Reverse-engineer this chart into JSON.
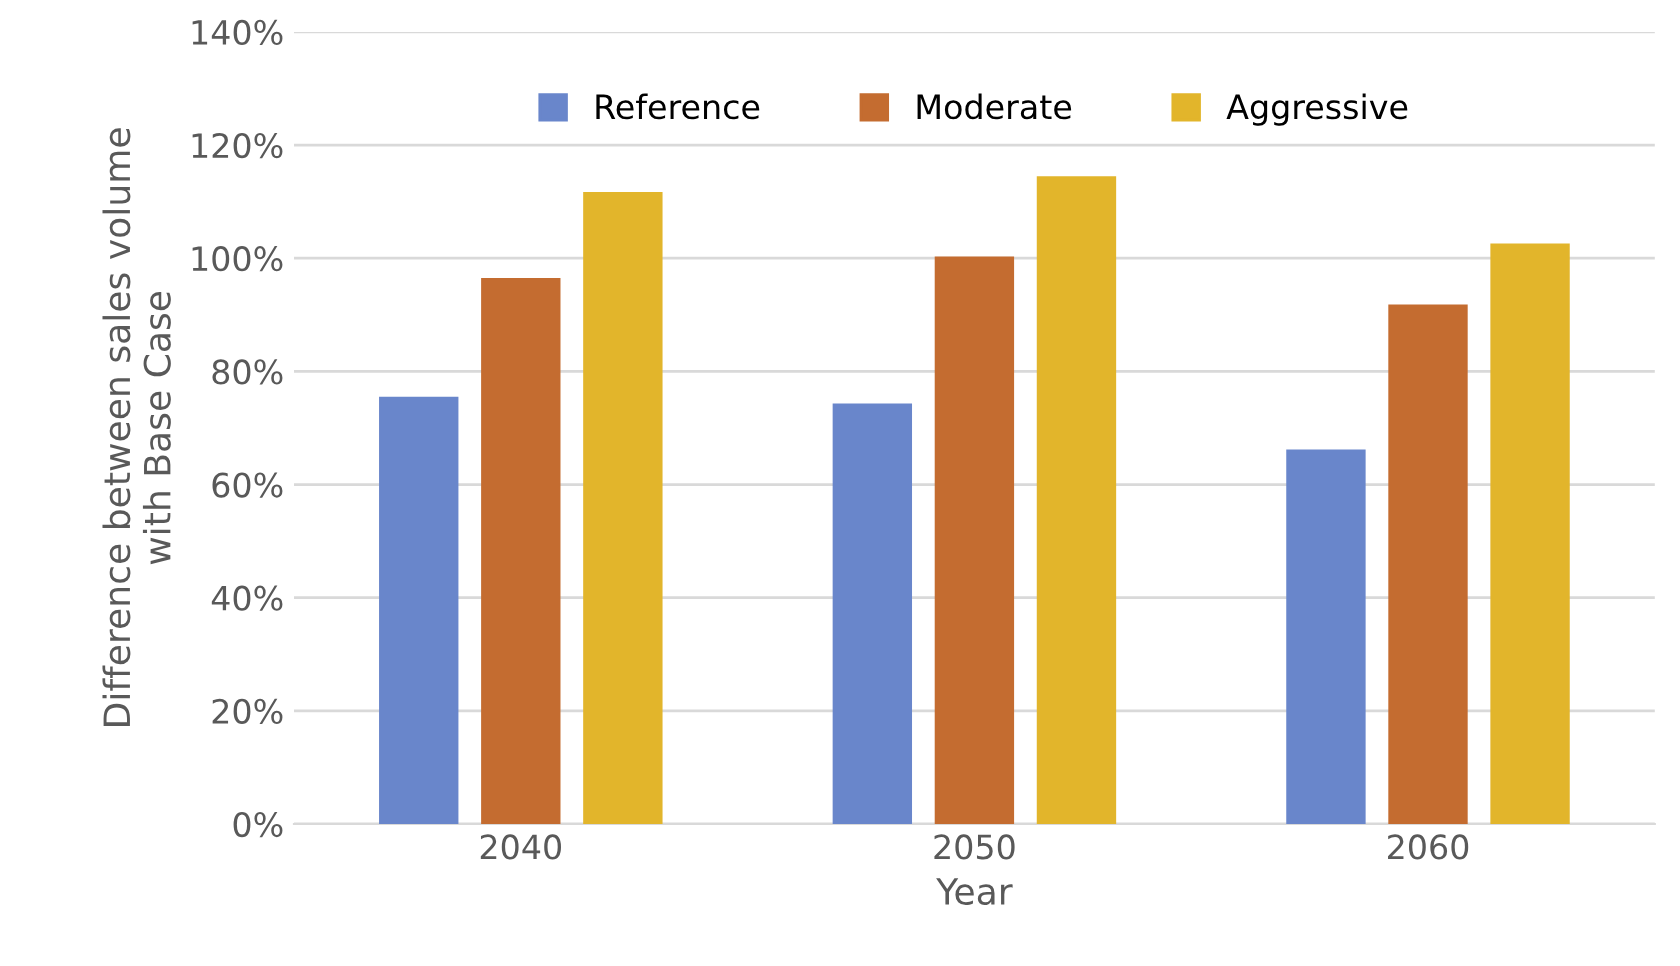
{
  "chart_data": {
    "type": "bar",
    "categories": [
      "2040",
      "2050",
      "2060"
    ],
    "series": [
      {
        "name": "Reference",
        "color": "#6986cb",
        "values": [
          75.5,
          74.3,
          66.2
        ]
      },
      {
        "name": "Moderate",
        "color": "#c46c30",
        "values": [
          96.5,
          100.3,
          91.8
        ]
      },
      {
        "name": "Aggressive",
        "color": "#e2b52b",
        "values": [
          111.7,
          114.5,
          102.6
        ]
      }
    ],
    "xlabel": "Year",
    "ylabel": "Difference between sales volume\nwith Base Case",
    "ylim": [
      0,
      140
    ],
    "yticks": [
      {
        "value": 0,
        "label": "0%"
      },
      {
        "value": 20,
        "label": "20%"
      },
      {
        "value": 40,
        "label": "40%"
      },
      {
        "value": 60,
        "label": "60%"
      },
      {
        "value": 80,
        "label": "80%"
      },
      {
        "value": 100,
        "label": "100%"
      },
      {
        "value": 120,
        "label": "120%"
      },
      {
        "value": 140,
        "label": "140%"
      }
    ],
    "grid": "y",
    "legend": "top"
  }
}
